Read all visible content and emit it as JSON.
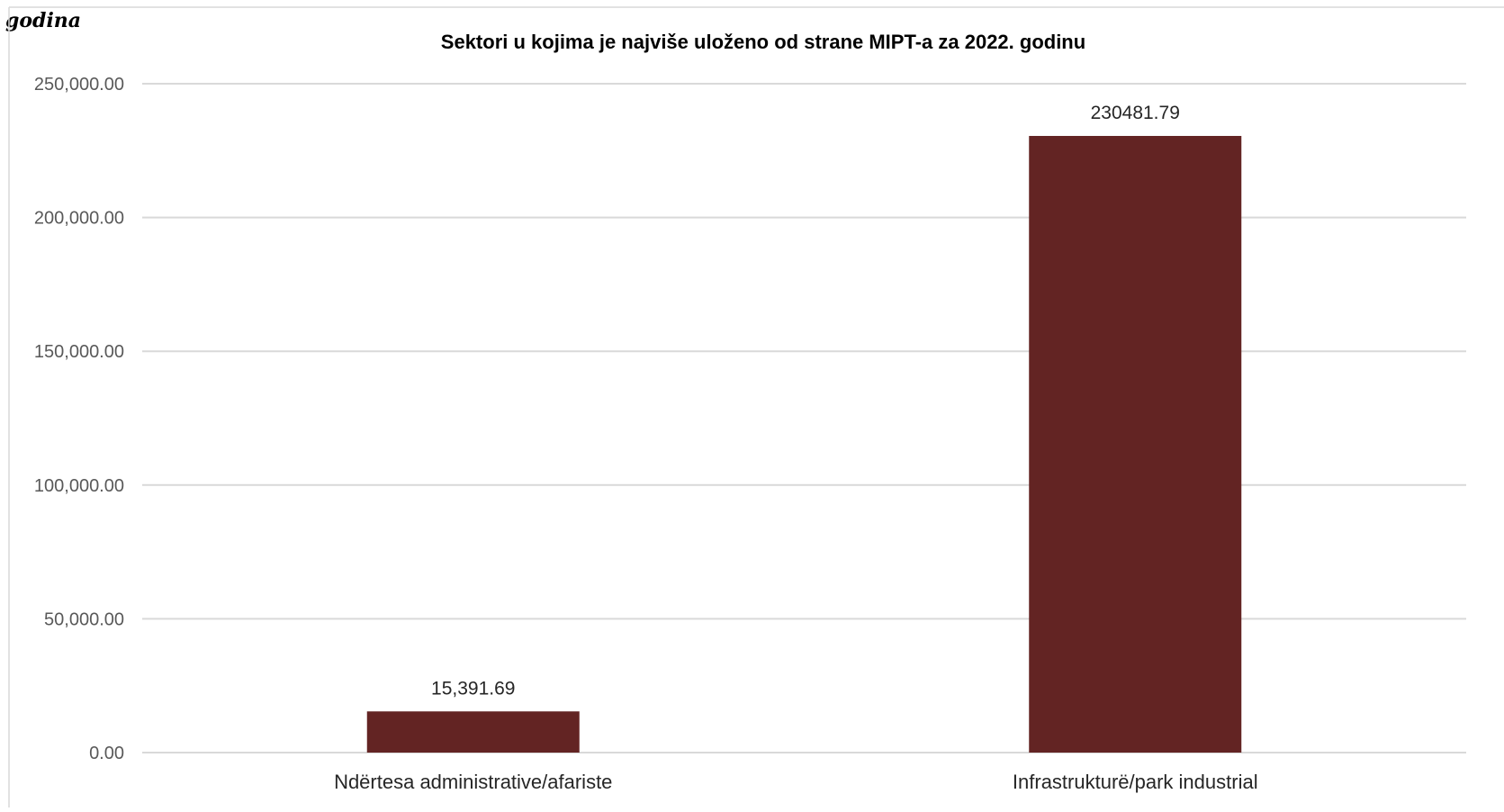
{
  "page": {
    "caption_fragment": "godina"
  },
  "colors": {
    "bar": "#632423",
    "grid": "#d9d9d9",
    "frame": "#d9d9d9"
  },
  "chart_data": {
    "type": "bar",
    "title": "Sektori u kojima je najviše uloženo od strane MIPT-a za 2022. godinu",
    "xlabel": "",
    "ylabel": "",
    "categories": [
      "Ndërtesa administrative/afariste",
      "Infrastrukturë/park industrial"
    ],
    "values": [
      15391.69,
      230481.79
    ],
    "data_labels": [
      "15,391.69",
      "230481.79"
    ],
    "ylim": [
      0,
      250000
    ],
    "yticks": [
      0,
      50000,
      100000,
      150000,
      200000,
      250000
    ],
    "ytick_labels": [
      "0.00",
      "50,000.00",
      "100,000.00",
      "150,000.00",
      "200,000.00",
      "250,000.00"
    ],
    "grid": true,
    "legend": "none"
  }
}
